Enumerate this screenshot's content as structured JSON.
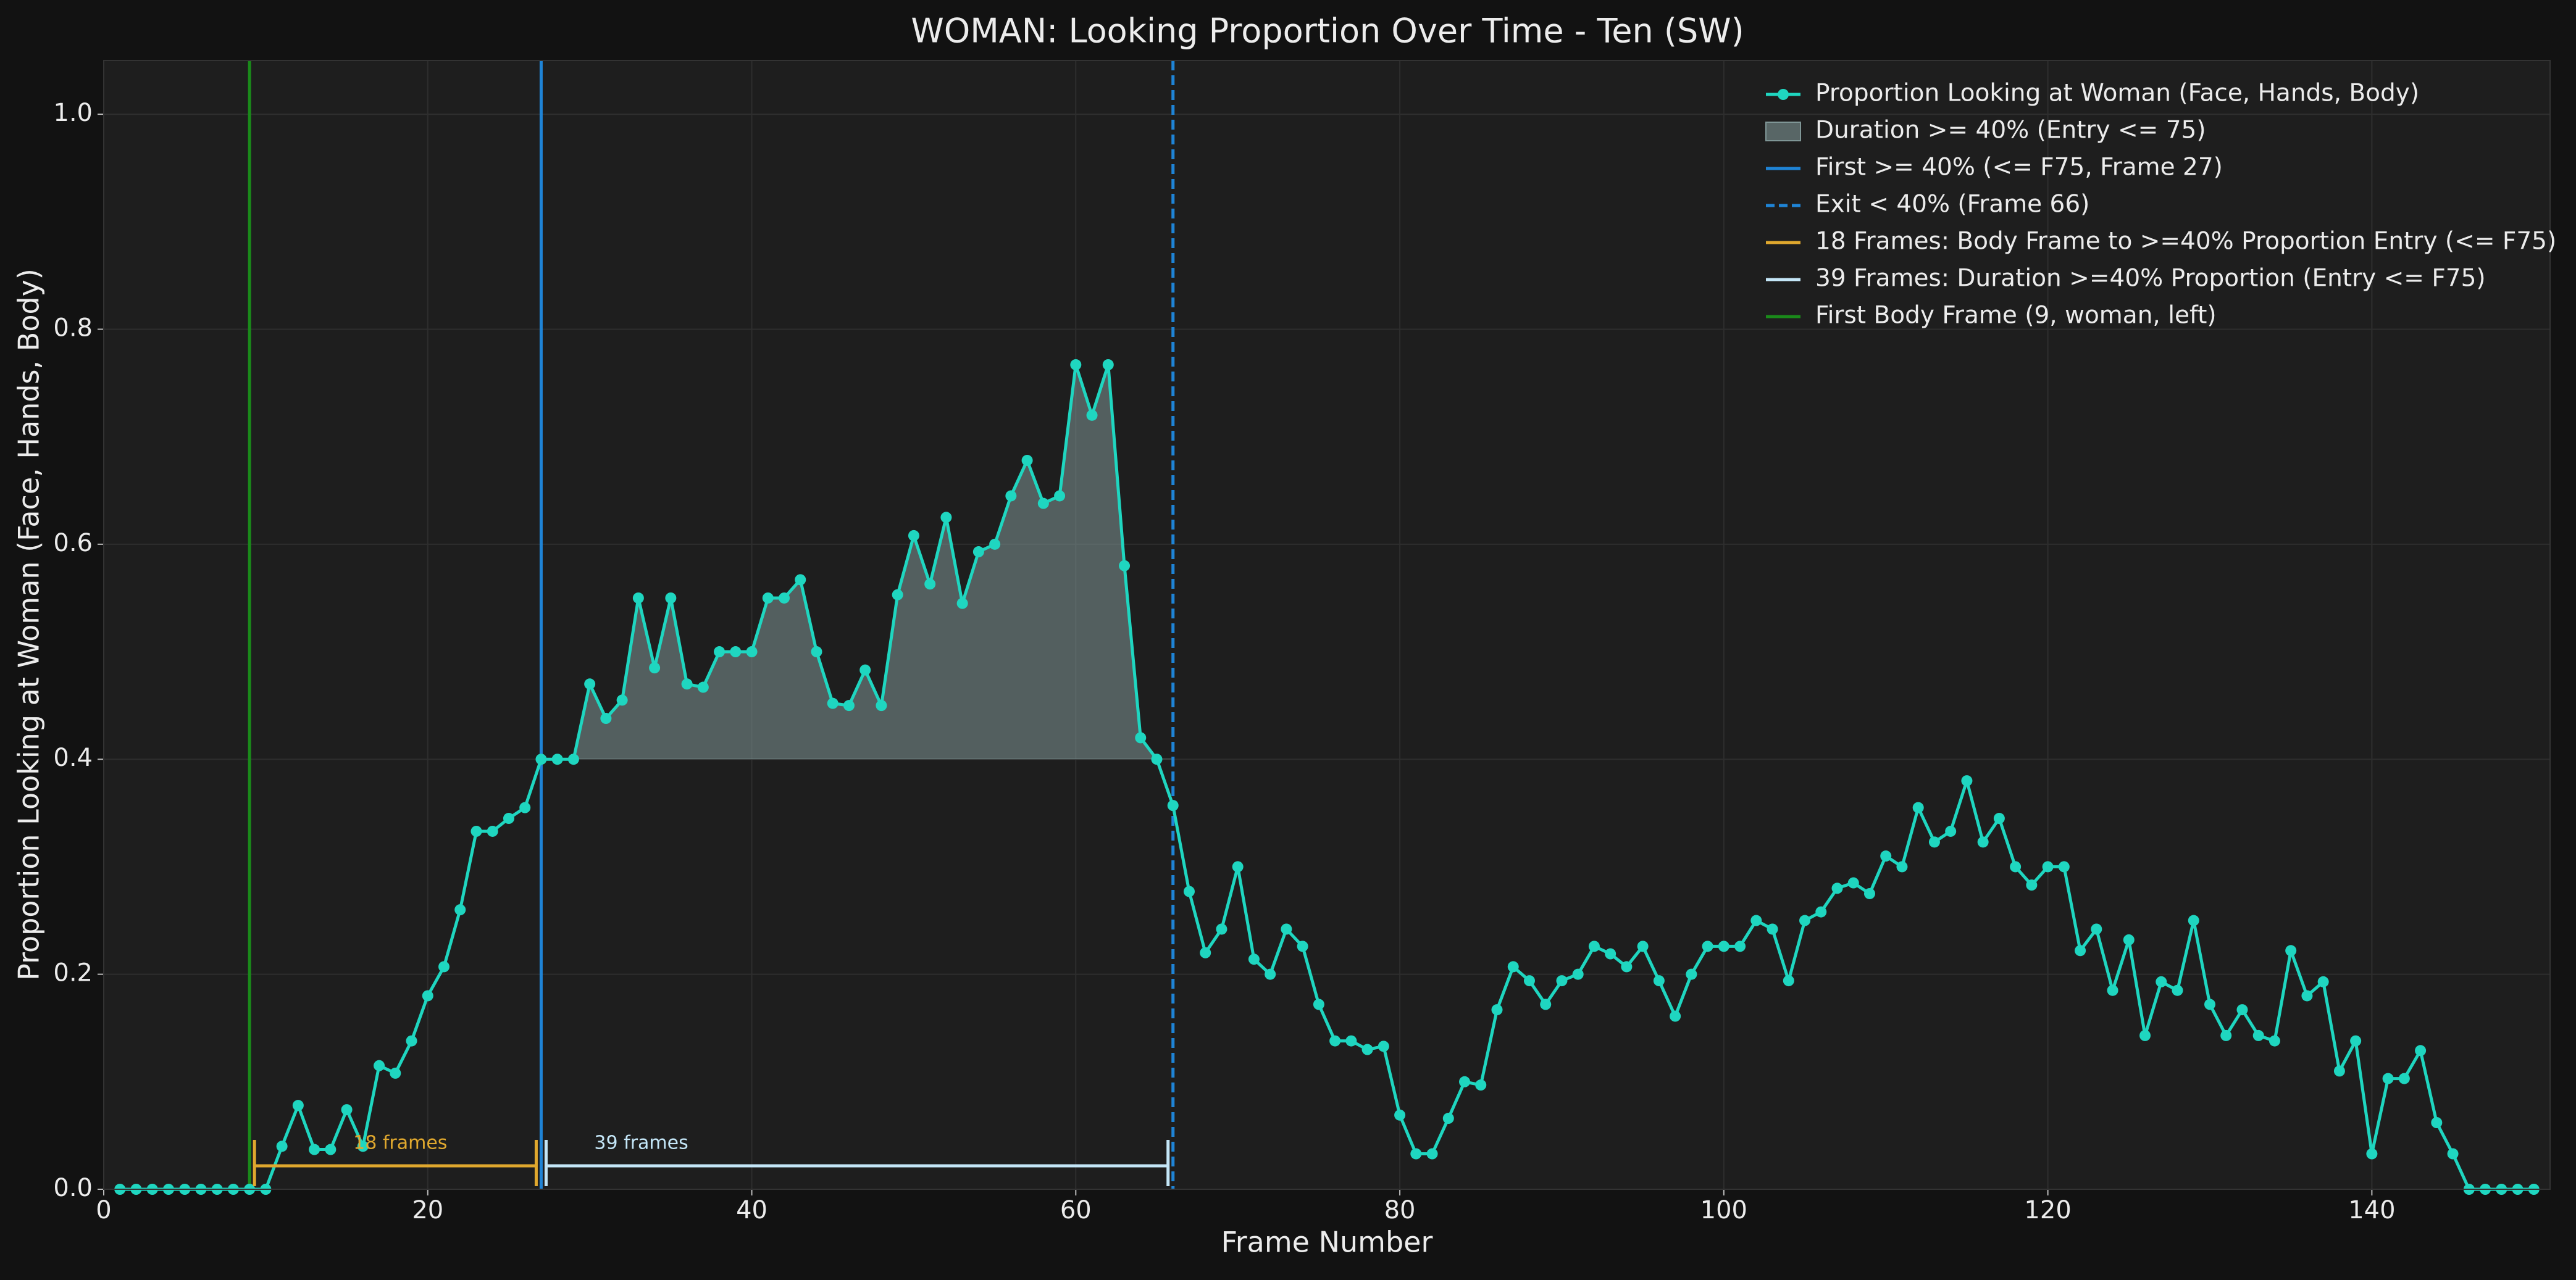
{
  "chart_data": {
    "type": "line",
    "title": "WOMAN: Looking Proportion Over Time - Ten (SW)",
    "x_label": "Frame Number",
    "y_label": "Proportion Looking at Woman (Face, Hands, Body)",
    "x": [
      1,
      2,
      3,
      4,
      5,
      6,
      7,
      8,
      9,
      10,
      11,
      12,
      13,
      14,
      15,
      16,
      17,
      18,
      19,
      20,
      21,
      22,
      23,
      24,
      25,
      26,
      27,
      28,
      29,
      30,
      31,
      32,
      33,
      34,
      35,
      36,
      37,
      38,
      39,
      40,
      41,
      42,
      43,
      44,
      45,
      46,
      47,
      48,
      49,
      50,
      51,
      52,
      53,
      54,
      55,
      56,
      57,
      58,
      59,
      60,
      61,
      62,
      63,
      64,
      65,
      66,
      67,
      68,
      69,
      70,
      71,
      72,
      73,
      74,
      75,
      76,
      77,
      78,
      79,
      80,
      81,
      82,
      83,
      84,
      85,
      86,
      87,
      88,
      89,
      90,
      91,
      92,
      93,
      94,
      95,
      96,
      97,
      98,
      99,
      100,
      101,
      102,
      103,
      104,
      105,
      106,
      107,
      108,
      109,
      110,
      111,
      112,
      113,
      114,
      115,
      116,
      117,
      118,
      119,
      120,
      121,
      122,
      123,
      124,
      125,
      126,
      127,
      128,
      129,
      130,
      131,
      132,
      133,
      134,
      135,
      136,
      137,
      138,
      139,
      140,
      141,
      142,
      143,
      144,
      145,
      146,
      147,
      148,
      149,
      150
    ],
    "series": [
      {
        "name": "Proportion Looking at Woman (Face, Hands, Body)",
        "color": "#1fd6c0",
        "values": [
          0,
          0,
          0,
          0,
          0,
          0,
          0,
          0,
          0,
          0,
          0.04,
          0.078,
          0.037,
          0.037,
          0.074,
          0.04,
          0.115,
          0.108,
          0.138,
          0.18,
          0.207,
          0.26,
          0.333,
          0.333,
          0.345,
          0.355,
          0.4,
          0.4,
          0.4,
          0.47,
          0.438,
          0.455,
          0.55,
          0.485,
          0.55,
          0.47,
          0.467,
          0.5,
          0.5,
          0.5,
          0.55,
          0.55,
          0.567,
          0.5,
          0.452,
          0.45,
          0.483,
          0.45,
          0.553,
          0.608,
          0.563,
          0.625,
          0.545,
          0.593,
          0.6,
          0.645,
          0.678,
          0.638,
          0.645,
          0.767,
          0.72,
          0.767,
          0.58,
          0.42,
          0.4,
          0.357,
          0.277,
          0.22,
          0.242,
          0.3,
          0.214,
          0.2,
          0.242,
          0.226,
          0.172,
          0.138,
          0.138,
          0.13,
          0.133,
          0.069,
          0.033,
          0.033,
          0.066,
          0.1,
          0.097,
          0.167,
          0.207,
          0.194,
          0.172,
          0.194,
          0.2,
          0.226,
          0.219,
          0.207,
          0.226,
          0.194,
          0.161,
          0.2,
          0.226,
          0.226,
          0.226,
          0.25,
          0.242,
          0.194,
          0.25,
          0.258,
          0.28,
          0.285,
          0.275,
          0.31,
          0.3,
          0.355,
          0.323,
          0.333,
          0.38,
          0.323,
          0.345,
          0.3,
          0.283,
          0.3,
          0.3,
          0.222,
          0.242,
          0.185,
          0.232,
          0.143,
          0.193,
          0.185,
          0.25,
          0.172,
          0.143,
          0.167,
          0.143,
          0.138,
          0.222,
          0.18,
          0.193,
          0.11,
          0.138,
          0.033,
          0.103,
          0.103,
          0.129,
          0.062,
          0.033,
          0,
          0,
          0,
          0,
          0
        ]
      }
    ],
    "shaded": {
      "name": "Duration >= 40% (Entry <= 75)",
      "threshold": 0.4,
      "from": 27,
      "to": 66,
      "color": "#7f9696"
    },
    "vlines": [
      {
        "name": "First >= 40% (<= F75, Frame 27)",
        "x": 27,
        "color": "#1f84d6",
        "style": "solid"
      },
      {
        "name": "Exit < 40% (Frame 66)",
        "x": 66,
        "color": "#1f84d6",
        "style": "dashed"
      },
      {
        "name": "First Body Frame (9, woman, left)",
        "x": 9,
        "color": "#1a8a1a",
        "style": "solid"
      }
    ],
    "brackets": [
      {
        "name": "18 Frames: Body Frame to >=40% Proportion Entry (<= F75)",
        "label": "18 frames",
        "from": 9,
        "to": 27,
        "color": "#e0a82e"
      },
      {
        "name": "39 Frames: Duration >=40% Proportion (Entry <= F75)",
        "label": "39 frames",
        "from": 27,
        "to": 66,
        "color": "#c4e6f7"
      }
    ],
    "legend_order": [
      "series",
      "shaded",
      "vline0",
      "vline1",
      "bracket0",
      "bracket1",
      "vline2"
    ],
    "legend": "upper right",
    "xlim": [
      0,
      151
    ],
    "ylim": [
      0,
      1.05
    ],
    "xticks": [
      0,
      20,
      40,
      60,
      80,
      100,
      120,
      140
    ],
    "yticks": [
      {
        "value": 0,
        "label": "0.0"
      },
      0.2,
      0.4,
      0.6,
      0.8,
      {
        "value": 1,
        "label": "1.0"
      }
    ],
    "grid": true
  }
}
